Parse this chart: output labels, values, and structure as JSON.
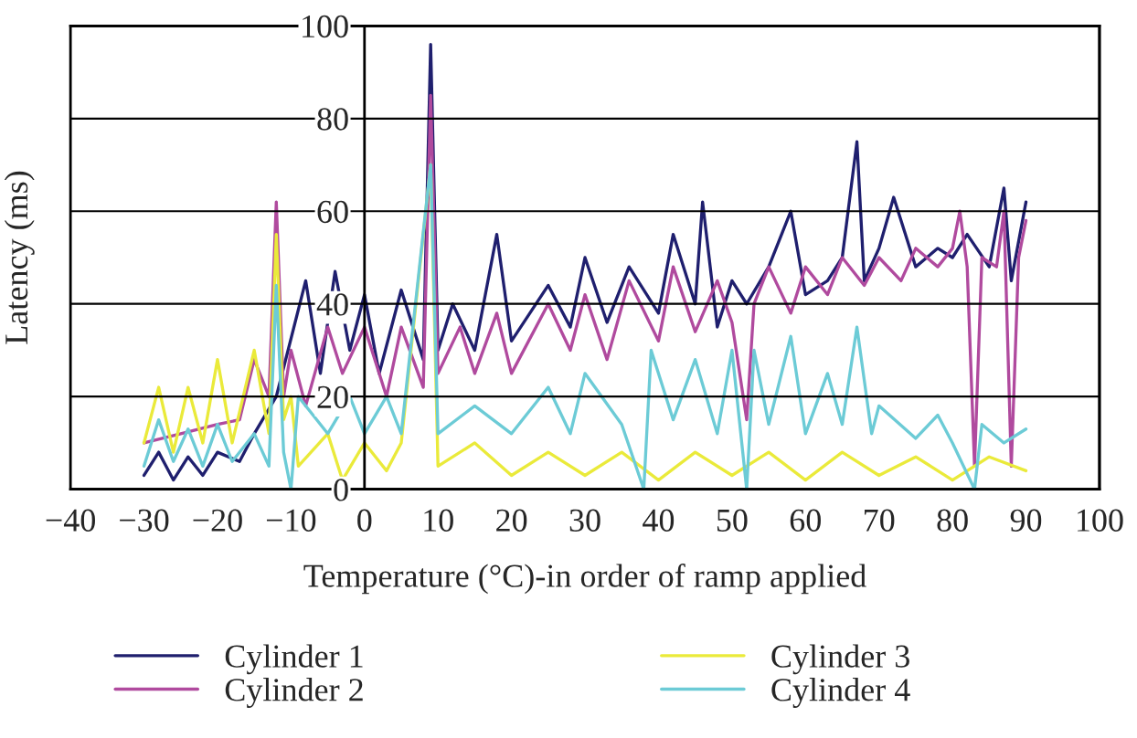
{
  "chart_data": {
    "type": "line",
    "xlabel": "Temperature (°C)-in order of ramp applied",
    "ylabel": "Latency (ms)",
    "xlim": [
      -40,
      100
    ],
    "xticks": [
      -40,
      -30,
      -20,
      -10,
      0,
      10,
      20,
      30,
      40,
      50,
      60,
      70,
      80,
      90,
      100
    ],
    "ylim": [
      0,
      100
    ],
    "yticks": [
      0,
      20,
      40,
      60,
      80,
      100
    ],
    "grid": "y",
    "legend": "bottom",
    "series": [
      {
        "name": "Cylinder 1",
        "color": "#1f1f6e",
        "x": [
          -30,
          -28,
          -26,
          -24,
          -22,
          -20,
          -17,
          -15,
          -12,
          -8,
          -6,
          -4,
          -2,
          0,
          2,
          5,
          8,
          9,
          10,
          12,
          15,
          18,
          20,
          25,
          28,
          30,
          33,
          36,
          40,
          42,
          45,
          46,
          48,
          50,
          52,
          55,
          58,
          60,
          63,
          65,
          67,
          68,
          70,
          72,
          75,
          78,
          80,
          82,
          85,
          87,
          88,
          90
        ],
        "values": [
          3,
          8,
          2,
          7,
          3,
          8,
          6,
          12,
          20,
          45,
          25,
          47,
          30,
          42,
          25,
          43,
          28,
          96,
          30,
          40,
          30,
          55,
          32,
          44,
          35,
          50,
          36,
          48,
          38,
          55,
          40,
          62,
          35,
          45,
          40,
          48,
          60,
          42,
          45,
          50,
          75,
          45,
          52,
          63,
          48,
          52,
          50,
          55,
          48,
          65,
          45,
          62
        ]
      },
      {
        "name": "Cylinder 2",
        "color": "#b04a9e",
        "x": [
          -30,
          -25,
          -20,
          -17,
          -15,
          -13,
          -12,
          -11,
          -10,
          -8,
          -5,
          -3,
          0,
          3,
          5,
          8,
          9,
          10,
          13,
          15,
          18,
          20,
          25,
          28,
          30,
          33,
          36,
          40,
          42,
          45,
          48,
          50,
          52,
          53,
          55,
          58,
          60,
          63,
          65,
          68,
          70,
          73,
          75,
          78,
          80,
          81,
          82,
          83,
          84,
          86,
          87,
          88,
          89,
          90
        ],
        "values": [
          10,
          12,
          14,
          15,
          28,
          20,
          62,
          20,
          30,
          18,
          35,
          25,
          35,
          20,
          35,
          22,
          85,
          25,
          35,
          25,
          38,
          25,
          40,
          30,
          42,
          28,
          45,
          32,
          48,
          34,
          45,
          36,
          15,
          40,
          48,
          38,
          48,
          42,
          50,
          44,
          50,
          45,
          52,
          48,
          52,
          60,
          48,
          5,
          50,
          48,
          60,
          5,
          50,
          58
        ]
      },
      {
        "name": "Cylinder 3",
        "color": "#eaea3a",
        "x": [
          -30,
          -28,
          -26,
          -24,
          -22,
          -20,
          -18,
          -15,
          -13,
          -12,
          -11,
          -10,
          -9,
          -5,
          -3,
          0,
          3,
          5,
          9,
          10,
          15,
          20,
          25,
          30,
          35,
          40,
          45,
          50,
          55,
          60,
          65,
          70,
          75,
          80,
          85,
          90
        ],
        "values": [
          10,
          22,
          8,
          22,
          10,
          28,
          10,
          30,
          12,
          55,
          15,
          20,
          5,
          12,
          2,
          10,
          4,
          10,
          70,
          5,
          10,
          3,
          8,
          3,
          8,
          2,
          8,
          3,
          8,
          2,
          8,
          3,
          7,
          2,
          7,
          4
        ]
      },
      {
        "name": "Cylinder 4",
        "color": "#6ccbd6",
        "x": [
          -30,
          -28,
          -26,
          -24,
          -22,
          -20,
          -18,
          -15,
          -13,
          -12,
          -11,
          -10,
          -9,
          -5,
          -2,
          0,
          3,
          5,
          9,
          10,
          15,
          20,
          25,
          28,
          30,
          35,
          38,
          39,
          42,
          45,
          48,
          50,
          52,
          53,
          55,
          58,
          60,
          63,
          65,
          67,
          69,
          70,
          75,
          78,
          80,
          83,
          84,
          87,
          90
        ],
        "values": [
          5,
          15,
          6,
          13,
          5,
          14,
          6,
          12,
          5,
          44,
          8,
          0,
          20,
          12,
          20,
          12,
          20,
          12,
          70,
          12,
          18,
          12,
          22,
          12,
          25,
          14,
          0,
          30,
          15,
          28,
          12,
          30,
          0,
          30,
          14,
          33,
          12,
          25,
          14,
          35,
          12,
          18,
          11,
          16,
          10,
          0,
          14,
          10,
          13
        ]
      }
    ]
  }
}
